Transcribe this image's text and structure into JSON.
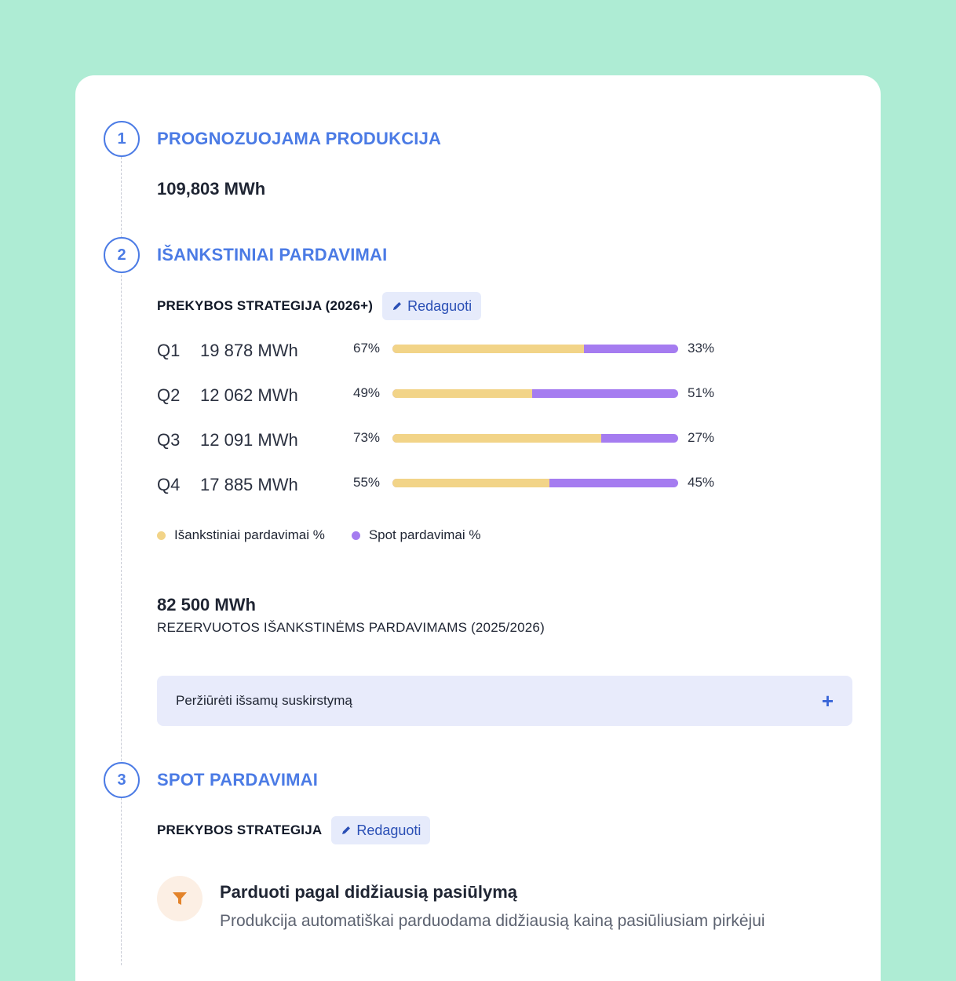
{
  "steps": [
    {
      "number": "1",
      "title": "PROGNOZUOJAMA PRODUKCIJA",
      "value": "109,803 MWh"
    },
    {
      "number": "2",
      "title": "IŠANKSTINIAI PARDAVIMAI"
    },
    {
      "number": "3",
      "title": "SPOT PARDAVIMAI"
    }
  ],
  "forward": {
    "strategy_label": "PREKYBOS STRATEGIJA (2026+)",
    "edit_label": "Redaguoti",
    "quarters": [
      {
        "quarter": "Q1",
        "mwh": "19 878 MWh",
        "forward_pct": 67,
        "spot_pct": 33,
        "forward_label": "67%",
        "spot_label": "33%"
      },
      {
        "quarter": "Q2",
        "mwh": "12 062 MWh",
        "forward_pct": 49,
        "spot_pct": 51,
        "forward_label": "49%",
        "spot_label": "51%"
      },
      {
        "quarter": "Q3",
        "mwh": "12 091 MWh",
        "forward_pct": 73,
        "spot_pct": 27,
        "forward_label": "73%",
        "spot_label": "27%"
      },
      {
        "quarter": "Q4",
        "mwh": "17 885 MWh",
        "forward_pct": 55,
        "spot_pct": 45,
        "forward_label": "55%",
        "spot_label": "45%"
      }
    ],
    "legend": {
      "forward": "Išankstiniai pardavimai %",
      "spot": "Spot pardavimai %"
    },
    "reserved_value": "82 500 MWh",
    "reserved_label": "REZERVUOTOS IŠANKSTINĖMS PARDAVIMAMS (2025/2026)",
    "breakdown_label": "Peržiūrėti išsamų suskirstymą"
  },
  "spot": {
    "strategy_label": "PREKYBOS STRATEGIJA",
    "edit_label": "Redaguoti",
    "rule_title": "Parduoti pagal didžiausią pasiūlymą",
    "rule_description": "Produkcija automatiškai parduodama didžiausią kainą pasiūliusiam pirkėjui",
    "rule_icon": "funnel-icon"
  },
  "colors": {
    "accent": "#4b7be5",
    "forward_bar": "#f2d488",
    "spot_bar": "#a57cf0",
    "edit_bg": "#e6ebfb",
    "accordion_bg": "#e8ebfb",
    "funnel": "#e3832a"
  }
}
